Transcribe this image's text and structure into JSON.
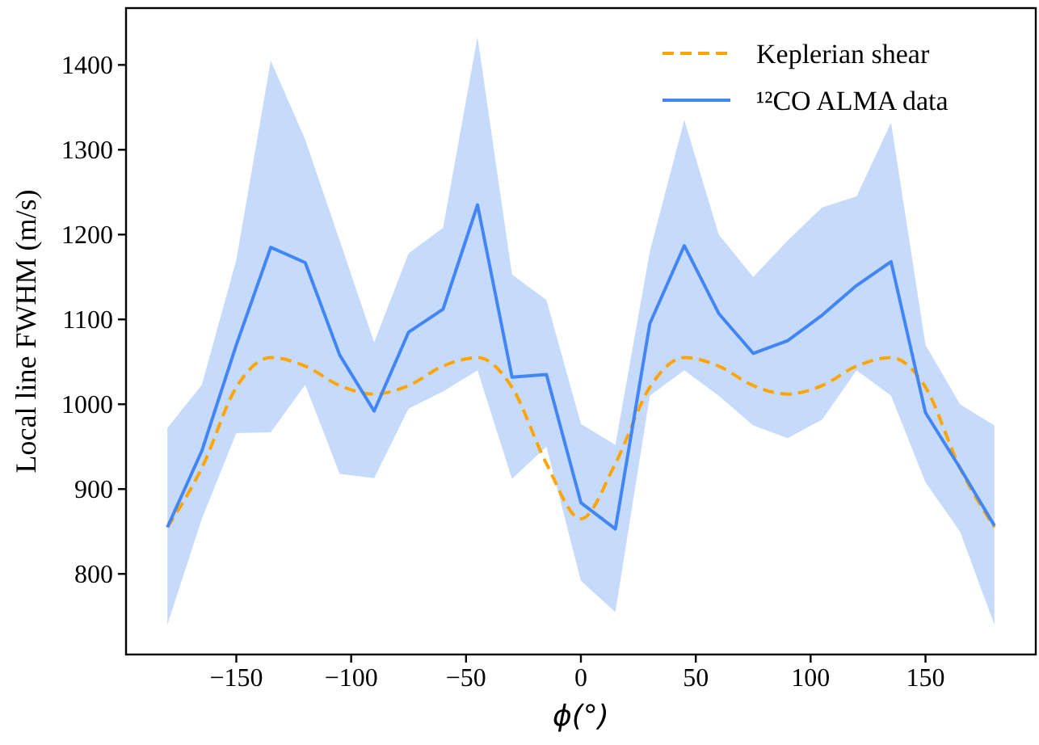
{
  "chart_data": {
    "type": "line",
    "xlabel": "ϕ(°)",
    "ylabel": "Local line FWHM (m/s)",
    "xlim": [
      -198,
      198
    ],
    "xticks": [
      {
        "value": -150,
        "label": "−150"
      },
      {
        "value": -100,
        "label": "−100"
      },
      {
        "value": -50,
        "label": "−50"
      },
      0,
      50,
      100,
      150
    ],
    "ylim": [
      705,
      1467
    ],
    "yticks": [
      800,
      900,
      1000,
      1100,
      1200,
      1300,
      1400
    ],
    "x": [
      -180,
      -165,
      -150,
      -135,
      -120,
      -105,
      -90,
      -75,
      -60,
      -45,
      -30,
      -15,
      0,
      15,
      30,
      45,
      60,
      75,
      90,
      105,
      120,
      135,
      150,
      165,
      180
    ],
    "series": [
      {
        "name": "Keplerian shear",
        "color": "#ffa500",
        "line_style": "dashed",
        "values": [
          855,
          925,
          1020,
          1055,
          1045,
          1022,
          1012,
          1022,
          1045,
          1055,
          1020,
          930,
          865,
          930,
          1020,
          1055,
          1045,
          1022,
          1012,
          1022,
          1045,
          1055,
          1020,
          925,
          855
        ]
      },
      {
        "name": "¹²CO ALMA data",
        "color": "#4285f4",
        "line_style": "solid",
        "values": [
          855,
          945,
          1070,
          1185,
          1167,
          1058,
          992,
          1085,
          1112,
          1235,
          1032,
          1035,
          884,
          853,
          1095,
          1187,
          1107,
          1060,
          1075,
          1105,
          1140,
          1168,
          990,
          925,
          857
        ],
        "lower": [
          740,
          865,
          966,
          967,
          1023,
          918,
          913,
          995,
          1015,
          1040,
          912,
          950,
          792,
          755,
          1010,
          1040,
          1010,
          975,
          960,
          982,
          1040,
          1010,
          908,
          850,
          740
        ],
        "upper": [
          972,
          1023,
          1170,
          1405,
          1312,
          1193,
          1073,
          1178,
          1208,
          1433,
          1153,
          1123,
          977,
          952,
          1180,
          1335,
          1200,
          1150,
          1193,
          1232,
          1245,
          1332,
          1070,
          1000,
          975
        ]
      }
    ],
    "legend": "top right",
    "grid": false
  }
}
